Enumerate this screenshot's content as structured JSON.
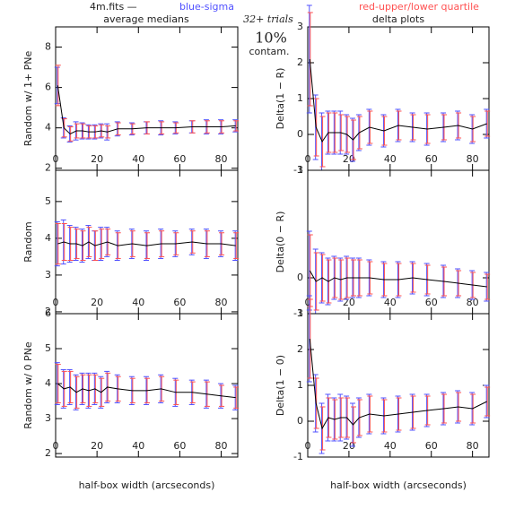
{
  "header": {
    "file": "4m.fits  —",
    "sigma_note": "blue-sigma",
    "quartile_note": "red-upper/lower quartile",
    "left_title": "average medians",
    "right_title": "delta plots",
    "trials": "32+ trials",
    "contamination": "10%",
    "contamination_label": "contam."
  },
  "chart_data": [
    {
      "type": "line",
      "ylabel": "Random w/ 1+ PNe",
      "xlim": [
        0,
        88
      ],
      "xticks": [
        0,
        20,
        40,
        60,
        80
      ],
      "ylim": [
        1.9,
        9
      ],
      "yticks": [
        2,
        4,
        6,
        8
      ],
      "x": [
        1,
        4,
        7,
        10,
        13,
        16,
        19,
        22,
        25,
        30,
        37,
        44,
        51,
        58,
        66,
        73,
        80,
        87
      ],
      "values": [
        6.1,
        4.0,
        3.7,
        3.85,
        3.85,
        3.8,
        3.8,
        3.85,
        3.8,
        3.95,
        3.95,
        4.0,
        4.0,
        4.0,
        4.05,
        4.05,
        4.05,
        4.1
      ],
      "errors": [
        0.9,
        0.5,
        0.4,
        0.45,
        0.4,
        0.35,
        0.35,
        0.35,
        0.4,
        0.35,
        0.3,
        0.3,
        0.35,
        0.3,
        0.3,
        0.35,
        0.35,
        0.3
      ],
      "quartile_errors": [
        1.0,
        0.45,
        0.35,
        0.35,
        0.35,
        0.3,
        0.3,
        0.3,
        0.3,
        0.3,
        0.25,
        0.3,
        0.3,
        0.25,
        0.3,
        0.3,
        0.3,
        0.25
      ],
      "color": "#000000",
      "error_color": "#5050ff",
      "quartile_color": "#ff5050"
    },
    {
      "type": "line",
      "ylabel": "Random",
      "xlim": [
        0,
        88
      ],
      "xticks": [
        0,
        20,
        40,
        60,
        80
      ],
      "ylim": [
        1.95,
        5.85
      ],
      "yticks": [
        2,
        3,
        4,
        5
      ],
      "x": [
        1,
        4,
        7,
        10,
        13,
        16,
        19,
        22,
        25,
        30,
        37,
        44,
        51,
        58,
        66,
        73,
        80,
        87
      ],
      "values": [
        3.85,
        3.9,
        3.85,
        3.85,
        3.8,
        3.9,
        3.8,
        3.85,
        3.9,
        3.8,
        3.85,
        3.8,
        3.85,
        3.85,
        3.9,
        3.85,
        3.85,
        3.8
      ],
      "errors": [
        0.6,
        0.6,
        0.5,
        0.45,
        0.45,
        0.45,
        0.4,
        0.45,
        0.4,
        0.4,
        0.4,
        0.4,
        0.4,
        0.35,
        0.35,
        0.4,
        0.35,
        0.4
      ],
      "quartile_errors": [
        0.55,
        0.5,
        0.45,
        0.4,
        0.4,
        0.4,
        0.4,
        0.4,
        0.35,
        0.35,
        0.35,
        0.35,
        0.35,
        0.3,
        0.3,
        0.35,
        0.3,
        0.35
      ],
      "color": "#000000",
      "error_color": "#5050ff",
      "quartile_color": "#ff5050"
    },
    {
      "type": "line",
      "ylabel": "Random w/ 0 PNe",
      "xlabel": "half-box width (arcseconds)",
      "xlim": [
        0,
        88
      ],
      "xticks": [
        0,
        20,
        40,
        60,
        80
      ],
      "ylim": [
        1.9,
        6
      ],
      "yticks": [
        2,
        3,
        4,
        5,
        6
      ],
      "x": [
        1,
        4,
        7,
        10,
        13,
        16,
        19,
        22,
        25,
        30,
        37,
        44,
        51,
        58,
        66,
        73,
        80,
        87
      ],
      "values": [
        4.0,
        3.85,
        3.9,
        3.75,
        3.85,
        3.8,
        3.85,
        3.75,
        3.9,
        3.85,
        3.8,
        3.8,
        3.85,
        3.75,
        3.75,
        3.7,
        3.65,
        3.6
      ],
      "errors": [
        0.6,
        0.55,
        0.5,
        0.5,
        0.45,
        0.5,
        0.45,
        0.45,
        0.45,
        0.4,
        0.4,
        0.4,
        0.4,
        0.4,
        0.35,
        0.4,
        0.35,
        0.35
      ],
      "quartile_errors": [
        0.55,
        0.5,
        0.45,
        0.45,
        0.4,
        0.45,
        0.4,
        0.4,
        0.4,
        0.35,
        0.35,
        0.35,
        0.35,
        0.35,
        0.3,
        0.35,
        0.3,
        0.3
      ],
      "color": "#000000",
      "error_color": "#5050ff",
      "quartile_color": "#ff5050"
    },
    {
      "type": "line",
      "ylabel": "Delta(1 − R)",
      "xlim": [
        0,
        88
      ],
      "xticks": [
        0,
        20,
        40,
        60,
        80
      ],
      "ylim": [
        -1,
        3
      ],
      "yticks": [
        -1,
        0,
        1,
        2,
        3
      ],
      "x": [
        1,
        4,
        7,
        10,
        13,
        16,
        19,
        22,
        25,
        30,
        37,
        44,
        51,
        58,
        66,
        73,
        80,
        87
      ],
      "values": [
        2.1,
        0.2,
        -0.2,
        0.05,
        0.05,
        0.05,
        0.0,
        -0.15,
        0.05,
        0.2,
        0.1,
        0.25,
        0.2,
        0.15,
        0.2,
        0.25,
        0.15,
        0.3
      ],
      "errors": [
        1.5,
        0.9,
        0.8,
        0.6,
        0.6,
        0.6,
        0.55,
        0.6,
        0.5,
        0.5,
        0.45,
        0.45,
        0.4,
        0.45,
        0.4,
        0.4,
        0.4,
        0.4
      ],
      "quartile_errors": [
        1.3,
        0.8,
        0.7,
        0.55,
        0.55,
        0.5,
        0.5,
        0.55,
        0.45,
        0.45,
        0.4,
        0.4,
        0.35,
        0.4,
        0.35,
        0.35,
        0.35,
        0.35
      ],
      "color": "#000000",
      "error_color": "#5050ff",
      "quartile_color": "#ff5050"
    },
    {
      "type": "line",
      "ylabel": "Delta(0 − R)",
      "xlim": [
        0,
        88
      ],
      "xticks": [
        0,
        20,
        40,
        60,
        80
      ],
      "ylim": [
        -1,
        3
      ],
      "yticks": [
        -1,
        0,
        3
      ],
      "x": [
        1,
        4,
        7,
        10,
        13,
        16,
        19,
        22,
        25,
        30,
        37,
        44,
        51,
        58,
        66,
        73,
        80,
        87
      ],
      "values": [
        0.2,
        -0.1,
        0.0,
        -0.1,
        0.0,
        -0.05,
        0.0,
        0.0,
        0.0,
        0.0,
        -0.05,
        -0.05,
        0.0,
        -0.05,
        -0.1,
        -0.15,
        -0.2,
        -0.25
      ],
      "errors": [
        1.1,
        0.9,
        0.7,
        0.65,
        0.6,
        0.6,
        0.6,
        0.55,
        0.55,
        0.5,
        0.5,
        0.5,
        0.45,
        0.45,
        0.45,
        0.4,
        0.4,
        0.4
      ],
      "quartile_errors": [
        1.0,
        0.8,
        0.65,
        0.6,
        0.55,
        0.55,
        0.55,
        0.5,
        0.5,
        0.45,
        0.45,
        0.45,
        0.4,
        0.4,
        0.4,
        0.35,
        0.35,
        0.35
      ],
      "color": "#000000",
      "error_color": "#5050ff",
      "quartile_color": "#ff5050"
    },
    {
      "type": "line",
      "ylabel": "Delta(1 − 0)",
      "xlabel": "half-box width (arcseconds)",
      "xlim": [
        0,
        88
      ],
      "xticks": [
        0,
        20,
        40,
        60,
        80
      ],
      "ylim": [
        -1,
        3
      ],
      "yticks": [
        -1,
        0,
        1,
        2,
        3
      ],
      "x": [
        1,
        4,
        7,
        10,
        13,
        16,
        19,
        22,
        25,
        30,
        37,
        44,
        51,
        58,
        66,
        73,
        80,
        87
      ],
      "values": [
        2.3,
        0.5,
        -0.2,
        0.1,
        0.05,
        0.1,
        0.1,
        -0.1,
        0.1,
        0.2,
        0.15,
        0.2,
        0.25,
        0.3,
        0.35,
        0.4,
        0.35,
        0.55
      ],
      "errors": [
        1.2,
        0.8,
        0.7,
        0.65,
        0.6,
        0.65,
        0.6,
        0.6,
        0.55,
        0.55,
        0.5,
        0.5,
        0.5,
        0.45,
        0.45,
        0.45,
        0.45,
        0.45
      ],
      "quartile_errors": [
        1.1,
        0.7,
        0.6,
        0.55,
        0.55,
        0.55,
        0.55,
        0.5,
        0.5,
        0.5,
        0.45,
        0.45,
        0.45,
        0.4,
        0.4,
        0.4,
        0.4,
        0.4
      ],
      "color": "#000000",
      "error_color": "#5050ff",
      "quartile_color": "#ff5050"
    }
  ]
}
